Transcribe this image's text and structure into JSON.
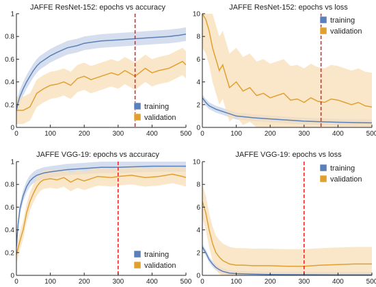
{
  "colors": {
    "training": "#5b7fb8",
    "training_band": "#c6d3e8",
    "validation": "#e0a030",
    "validation_band": "#f8dfb8",
    "marker": "#e02020",
    "axis": "#222222"
  },
  "legend_labels": {
    "training": "training",
    "validation": "validation"
  },
  "chart_data": [
    {
      "type": "line",
      "title": "JAFFE ResNet-152: epochs vs accuracy",
      "xlim": [
        0,
        500
      ],
      "ylim": [
        0,
        1.0
      ],
      "xticks": [
        0,
        100,
        200,
        300,
        400,
        500
      ],
      "yticks": [
        0,
        0.2,
        0.4,
        0.6,
        0.8,
        1.0
      ],
      "vline": 350,
      "legend": "bottom-right",
      "series": [
        {
          "name": "training",
          "x": [
            0,
            5,
            10,
            20,
            30,
            40,
            50,
            60,
            70,
            80,
            100,
            120,
            150,
            180,
            200,
            250,
            300,
            350,
            400,
            450,
            480,
            500
          ],
          "y": [
            0.15,
            0.22,
            0.27,
            0.34,
            0.4,
            0.45,
            0.5,
            0.54,
            0.57,
            0.59,
            0.63,
            0.66,
            0.7,
            0.72,
            0.74,
            0.76,
            0.77,
            0.78,
            0.79,
            0.8,
            0.81,
            0.82
          ],
          "band": 0.06
        },
        {
          "name": "validation",
          "x": [
            0,
            20,
            40,
            50,
            60,
            80,
            100,
            120,
            140,
            160,
            180,
            200,
            220,
            250,
            280,
            300,
            320,
            350,
            380,
            400,
            420,
            450,
            470,
            490,
            500
          ],
          "y": [
            0.15,
            0.15,
            0.18,
            0.24,
            0.3,
            0.34,
            0.37,
            0.38,
            0.4,
            0.37,
            0.43,
            0.45,
            0.42,
            0.45,
            0.48,
            0.46,
            0.5,
            0.45,
            0.52,
            0.48,
            0.5,
            0.52,
            0.55,
            0.58,
            0.55
          ],
          "band": 0.12
        }
      ]
    },
    {
      "type": "line",
      "title": "JAFFE ResNet-152: epochs vs loss",
      "xlim": [
        0,
        500
      ],
      "ylim": [
        0,
        10
      ],
      "xticks": [
        0,
        100,
        200,
        300,
        400,
        500
      ],
      "yticks": [
        0,
        2,
        4,
        6,
        8,
        10
      ],
      "vline": 350,
      "legend": "top-right",
      "series": [
        {
          "name": "training",
          "x": [
            0,
            10,
            20,
            40,
            60,
            80,
            100,
            150,
            200,
            250,
            300,
            350,
            400,
            450,
            500
          ],
          "y": [
            2.6,
            2.2,
            1.9,
            1.6,
            1.4,
            1.2,
            1.0,
            0.85,
            0.75,
            0.65,
            0.55,
            0.5,
            0.45,
            0.42,
            0.4
          ],
          "band": 0.3
        },
        {
          "name": "validation",
          "x": [
            0,
            10,
            20,
            30,
            40,
            50,
            60,
            70,
            80,
            100,
            120,
            140,
            160,
            180,
            200,
            220,
            240,
            260,
            280,
            300,
            320,
            340,
            360,
            380,
            400,
            420,
            440,
            460,
            480,
            500
          ],
          "y": [
            10,
            9.5,
            8.5,
            7.0,
            6.0,
            5.0,
            5.5,
            4.5,
            3.5,
            4.0,
            3.2,
            3.5,
            2.8,
            3.0,
            2.6,
            2.8,
            3.0,
            2.4,
            2.5,
            2.2,
            2.6,
            2.3,
            2.2,
            2.5,
            2.4,
            2.2,
            2.0,
            2.2,
            1.9,
            1.8
          ],
          "band": 3.0
        }
      ]
    },
    {
      "type": "line",
      "title": "JAFFE VGG-19: epochs vs accuracy",
      "xlim": [
        0,
        500
      ],
      "ylim": [
        0,
        1.0
      ],
      "xticks": [
        0,
        100,
        200,
        300,
        400,
        500
      ],
      "yticks": [
        0,
        0.2,
        0.4,
        0.6,
        0.8,
        1.0
      ],
      "vline": 300,
      "legend": "bottom-right",
      "series": [
        {
          "name": "training",
          "x": [
            0,
            5,
            10,
            20,
            30,
            40,
            50,
            60,
            80,
            100,
            150,
            200,
            250,
            300,
            400,
            500
          ],
          "y": [
            0.25,
            0.45,
            0.58,
            0.7,
            0.78,
            0.83,
            0.86,
            0.88,
            0.9,
            0.91,
            0.93,
            0.94,
            0.95,
            0.95,
            0.96,
            0.96
          ],
          "band": 0.05
        },
        {
          "name": "validation",
          "x": [
            0,
            10,
            20,
            30,
            40,
            50,
            60,
            70,
            80,
            100,
            120,
            140,
            160,
            180,
            200,
            240,
            280,
            300,
            340,
            380,
            420,
            460,
            490,
            500
          ],
          "y": [
            0.18,
            0.3,
            0.4,
            0.55,
            0.65,
            0.72,
            0.78,
            0.82,
            0.84,
            0.85,
            0.84,
            0.86,
            0.82,
            0.85,
            0.83,
            0.87,
            0.86,
            0.87,
            0.88,
            0.86,
            0.87,
            0.89,
            0.87,
            0.86
          ],
          "band": 0.08
        }
      ]
    },
    {
      "type": "line",
      "title": "JAFFE VGG-19: epochs vs loss",
      "xlim": [
        0,
        500
      ],
      "ylim": [
        0,
        10
      ],
      "xticks": [
        0,
        100,
        200,
        300,
        400,
        500
      ],
      "yticks": [
        0,
        2,
        4,
        6,
        8,
        10
      ],
      "vline": 300,
      "legend": "top-right",
      "series": [
        {
          "name": "training",
          "x": [
            0,
            10,
            20,
            30,
            40,
            50,
            60,
            80,
            100,
            150,
            200,
            300,
            400,
            500
          ],
          "y": [
            2.5,
            2.0,
            1.4,
            1.0,
            0.7,
            0.5,
            0.35,
            0.2,
            0.15,
            0.1,
            0.08,
            0.06,
            0.05,
            0.05
          ],
          "band": 0.25
        },
        {
          "name": "validation",
          "x": [
            0,
            10,
            20,
            30,
            40,
            50,
            60,
            80,
            100,
            120,
            150,
            200,
            250,
            300,
            350,
            400,
            450,
            500
          ],
          "y": [
            6.5,
            5.5,
            4.0,
            2.8,
            2.0,
            1.6,
            1.3,
            1.0,
            0.9,
            0.9,
            0.85,
            0.85,
            0.8,
            0.8,
            0.9,
            0.95,
            1.0,
            1.0
          ],
          "band": 1.5
        }
      ]
    }
  ]
}
